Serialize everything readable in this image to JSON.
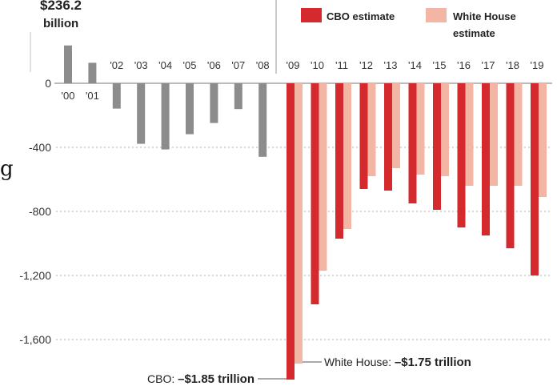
{
  "chart_data": {
    "type": "bar",
    "categories": [
      "'00",
      "'01",
      "'02",
      "'03",
      "'04",
      "'05",
      "'06",
      "'07",
      "'08",
      "'09",
      "'10",
      "'11",
      "'12",
      "'13",
      "'14",
      "'15",
      "'16",
      "'17",
      "'18",
      "'19"
    ],
    "series": [
      {
        "values": [
          236.2,
          128,
          -158,
          -378,
          -413,
          -318,
          -248,
          -161,
          -459,
          null,
          null,
          null,
          null,
          null,
          null,
          null,
          null,
          null,
          null,
          null
        ],
        "color": "#8c8c8c"
      },
      {
        "name": "CBO estimate",
        "values": [
          null,
          null,
          null,
          null,
          null,
          null,
          null,
          null,
          null,
          -1850,
          -1380,
          -970,
          -660,
          -670,
          -750,
          -790,
          -900,
          -950,
          -1030,
          -1200
        ],
        "color": "#d42a2e"
      },
      {
        "name": "White House estimate",
        "values": [
          null,
          null,
          null,
          null,
          null,
          null,
          null,
          null,
          null,
          -1750,
          -1170,
          -910,
          -580,
          -530,
          -570,
          -580,
          -640,
          -640,
          -640,
          -710
        ],
        "color": "#f4b6a4"
      }
    ],
    "yticks": [
      0,
      -400,
      -800,
      -1200,
      -1600
    ],
    "ytick_labels": [
      "0",
      "-400",
      "-800",
      "-1,200",
      "-1,600"
    ],
    "ylim": [
      -1880,
      270
    ],
    "grid": true,
    "legend_position": "top-right",
    "annotations": {
      "top_value": "$236.2",
      "top_unit": "billion",
      "wh_prefix": "White House: ",
      "wh_value": "–$1.75 trillion",
      "cbo_prefix": "CBO: ",
      "cbo_value": "–$1.85 trillion",
      "stray_glyph": "g"
    }
  }
}
